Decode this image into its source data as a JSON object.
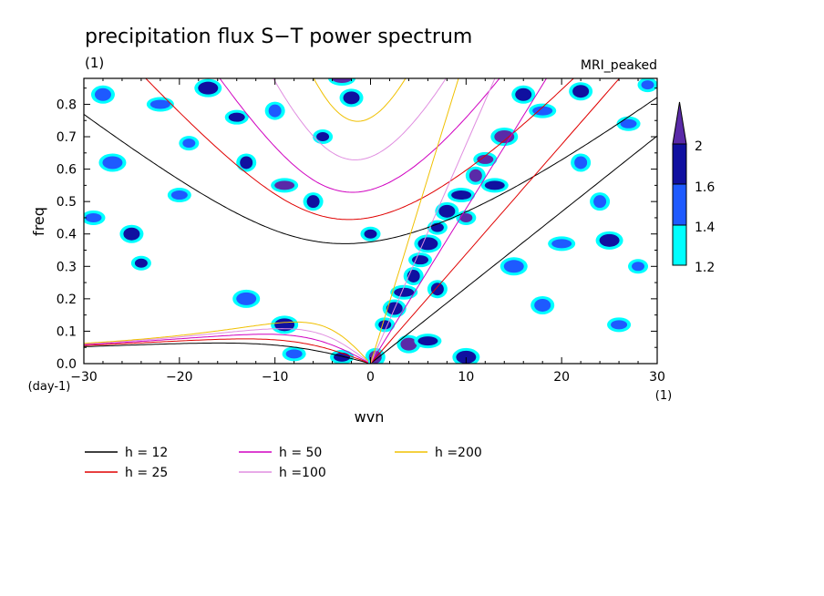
{
  "chart_data": {
    "type": "line",
    "title": "precipitation flux S−T power spectrum",
    "subtitle_left": "(1)",
    "subtitle_right": "MRI_peaked",
    "xlabel": "wvn",
    "ylabel": "freq",
    "x_unit": "(1)",
    "y_unit": "(day-1)",
    "xlim": [
      -30,
      30
    ],
    "ylim": [
      0,
      0.88
    ],
    "x_ticks": [
      -30,
      -20,
      -10,
      0,
      10,
      20,
      30
    ],
    "x_tick_labels": [
      "−30",
      "−20",
      "−10",
      "0",
      "10",
      "20",
      "30"
    ],
    "y_ticks": [
      0,
      0.1,
      0.2,
      0.3,
      0.4,
      0.5,
      0.6,
      0.7,
      0.8
    ],
    "y_tick_labels": [
      "0.0",
      "0.1",
      "0.2",
      "0.3",
      "0.4",
      "0.5",
      "0.6",
      "0.7",
      "0.8"
    ],
    "series": [
      {
        "name": "h = 12",
        "h": 12,
        "color": "#000000"
      },
      {
        "name": "h = 25",
        "h": 25,
        "color": "#e00000"
      },
      {
        "name": "h = 50",
        "h": 50,
        "color": "#d000c0"
      },
      {
        "name": "h =100",
        "h": 100,
        "color": "#e08ee0"
      },
      {
        "name": "h =200",
        "h": 200,
        "color": "#f0c000"
      }
    ],
    "shaded_contours": {
      "levels": [
        1.2,
        1.4,
        1.6,
        2
      ],
      "level_labels": [
        "1.2",
        "1.4",
        "1.6",
        "2"
      ],
      "colors": [
        "#00ffff",
        "#1e5aff",
        "#1010a0",
        "#5a2aa8"
      ],
      "regions": [
        {
          "x": 1.5,
          "y": 0.12,
          "level": 2
        },
        {
          "x": 2.5,
          "y": 0.17,
          "level": 2
        },
        {
          "x": 3.5,
          "y": 0.22,
          "level": 2
        },
        {
          "x": 4.5,
          "y": 0.27,
          "level": 2
        },
        {
          "x": 5.2,
          "y": 0.32,
          "level": 2
        },
        {
          "x": 6.0,
          "y": 0.37,
          "level": 2
        },
        {
          "x": 7.0,
          "y": 0.42,
          "level": 2
        },
        {
          "x": 8.0,
          "y": 0.47,
          "level": 2
        },
        {
          "x": 9.5,
          "y": 0.52,
          "level": 2
        },
        {
          "x": 11.0,
          "y": 0.58,
          "level": 3
        },
        {
          "x": 12.0,
          "y": 0.63,
          "level": 3
        },
        {
          "x": 14.0,
          "y": 0.7,
          "level": 3
        },
        {
          "x": 10.0,
          "y": 0.45,
          "level": 3
        },
        {
          "x": 4.0,
          "y": 0.06,
          "level": 3
        },
        {
          "x": 6.0,
          "y": 0.07,
          "level": 2
        },
        {
          "x": 0.5,
          "y": 0.02,
          "level": 3
        },
        {
          "x": -3.0,
          "y": 0.02,
          "level": 2
        },
        {
          "x": -9.0,
          "y": 0.12,
          "level": 2
        },
        {
          "x": -24.0,
          "y": 0.31,
          "level": 2
        },
        {
          "x": -25.0,
          "y": 0.4,
          "level": 2
        },
        {
          "x": -9.0,
          "y": 0.55,
          "level": 3
        },
        {
          "x": -13.0,
          "y": 0.62,
          "level": 2
        },
        {
          "x": -14.0,
          "y": 0.76,
          "level": 2
        },
        {
          "x": -17.0,
          "y": 0.85,
          "level": 2
        },
        {
          "x": -5.0,
          "y": 0.7,
          "level": 2
        },
        {
          "x": -2.0,
          "y": 0.82,
          "level": 2
        },
        {
          "x": -3.0,
          "y": 0.88,
          "level": 3
        },
        {
          "x": -6.0,
          "y": 0.5,
          "level": 2
        },
        {
          "x": -20.0,
          "y": 0.52,
          "level": 1
        },
        {
          "x": -27.0,
          "y": 0.62,
          "level": 1
        },
        {
          "x": -19.0,
          "y": 0.68,
          "level": 1
        },
        {
          "x": -28.0,
          "y": 0.83,
          "level": 1
        },
        {
          "x": -22.0,
          "y": 0.8,
          "level": 1
        },
        {
          "x": -10.0,
          "y": 0.78,
          "level": 1
        },
        {
          "x": -29.0,
          "y": 0.45,
          "level": 1
        },
        {
          "x": -13.0,
          "y": 0.2,
          "level": 1
        },
        {
          "x": 0.0,
          "y": 0.4,
          "level": 2
        },
        {
          "x": 16.0,
          "y": 0.83,
          "level": 2
        },
        {
          "x": 18.0,
          "y": 0.78,
          "level": 1
        },
        {
          "x": 22.0,
          "y": 0.62,
          "level": 1
        },
        {
          "x": 27.0,
          "y": 0.74,
          "level": 1
        },
        {
          "x": 25.0,
          "y": 0.38,
          "level": 2
        },
        {
          "x": 28.0,
          "y": 0.3,
          "level": 1
        },
        {
          "x": 18.0,
          "y": 0.18,
          "level": 1
        },
        {
          "x": 20.0,
          "y": 0.37,
          "level": 1
        },
        {
          "x": 24.0,
          "y": 0.5,
          "level": 1
        },
        {
          "x": 26.0,
          "y": 0.12,
          "level": 1
        },
        {
          "x": 15.0,
          "y": 0.3,
          "level": 1
        },
        {
          "x": 29.0,
          "y": 0.86,
          "level": 1
        },
        {
          "x": 22.0,
          "y": 0.84,
          "level": 2
        },
        {
          "x": 13.0,
          "y": 0.55,
          "level": 2
        },
        {
          "x": 7.0,
          "y": 0.23,
          "level": 2
        },
        {
          "x": -8.0,
          "y": 0.03,
          "level": 1
        },
        {
          "x": 10.0,
          "y": 0.02,
          "level": 2
        }
      ]
    }
  }
}
